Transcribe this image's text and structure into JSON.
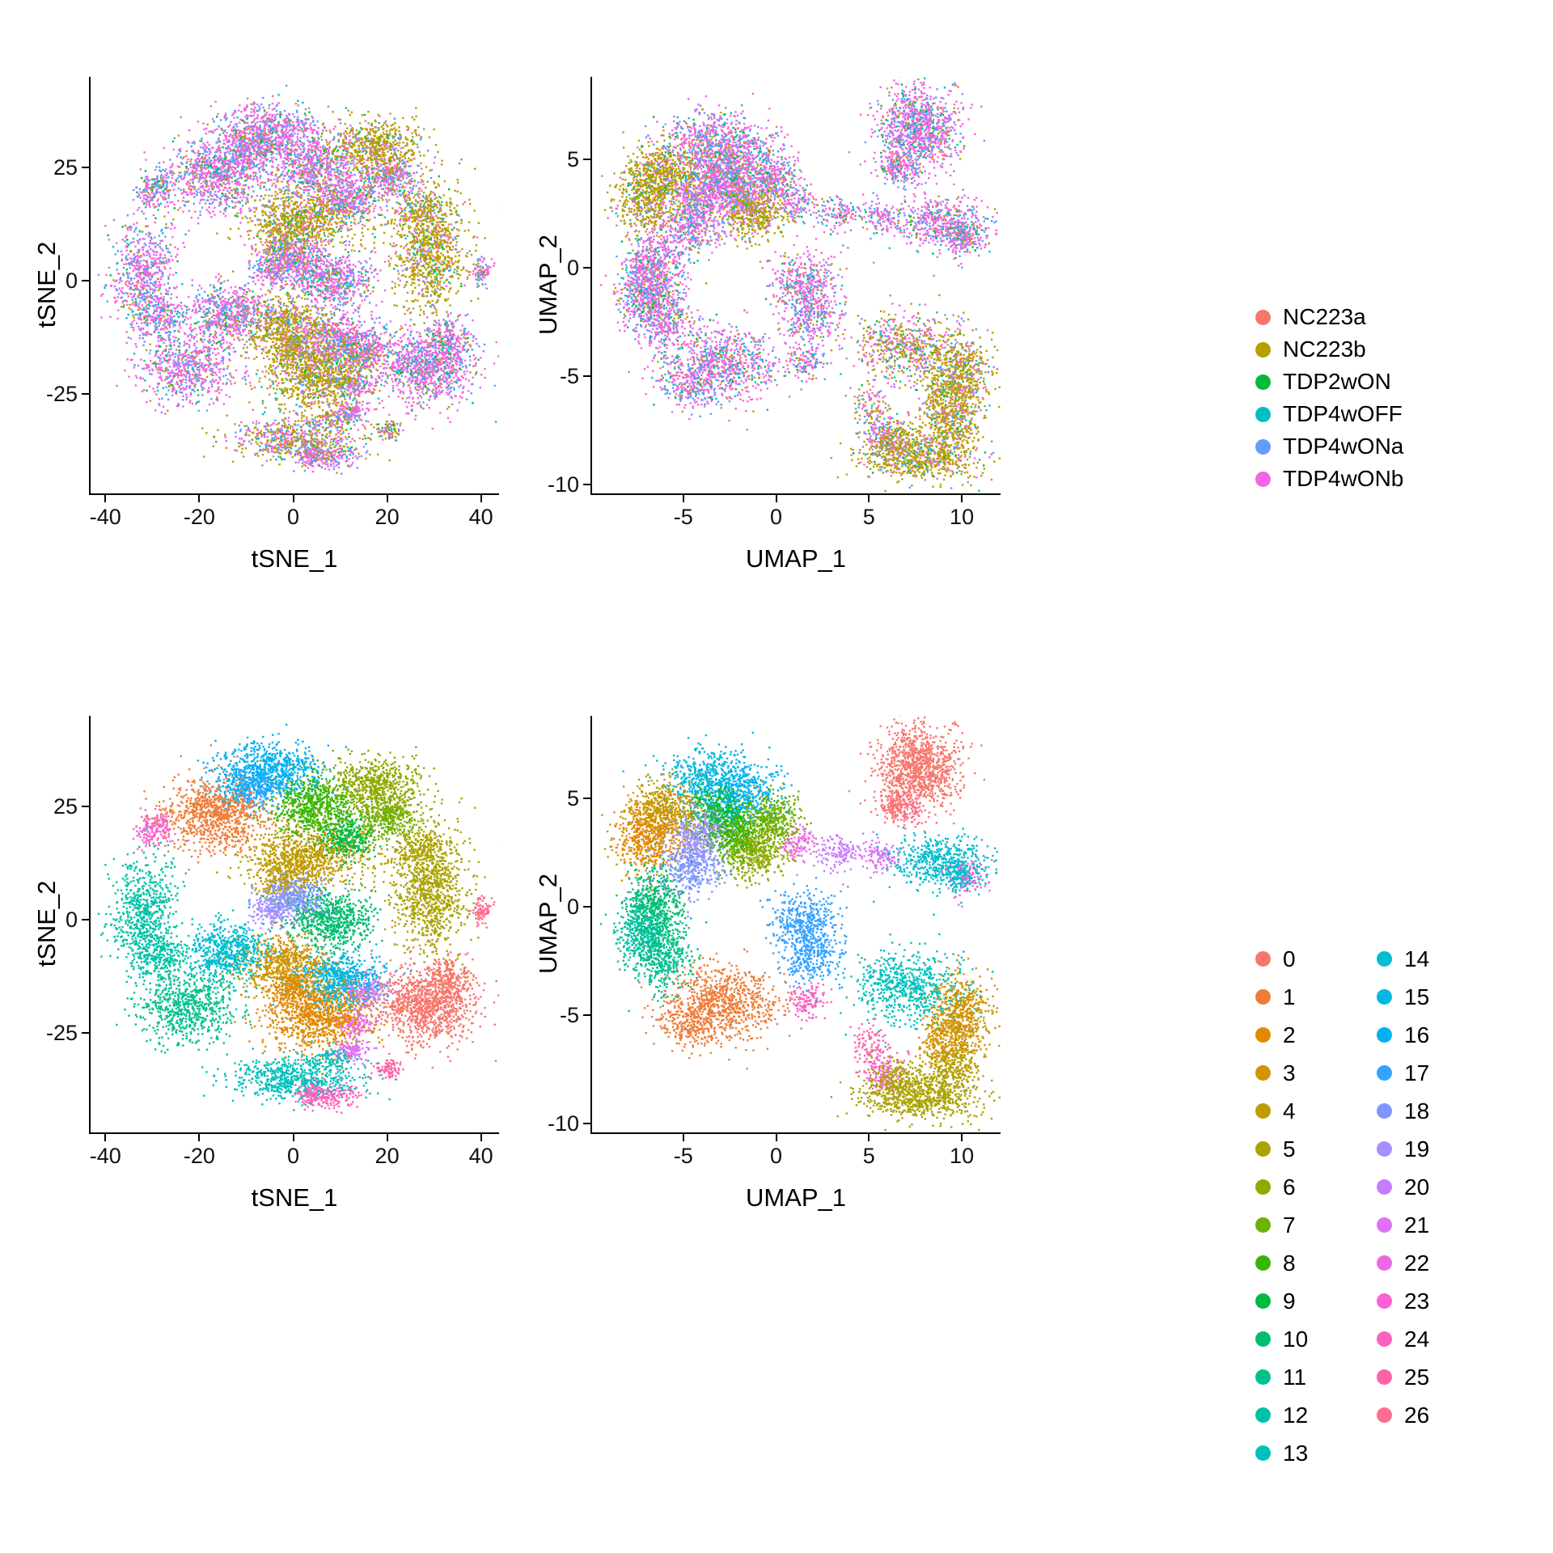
{
  "page": {
    "background": "#ffffff"
  },
  "chart_data": {
    "type": "scatter",
    "figure": "2x2 grid of single-cell embeddings: tSNE (left) and UMAP (right), colored by sample (top row) and by cluster 0-26 (bottom row)",
    "samples": [
      {
        "label": "NC223a",
        "color": "#F8766D"
      },
      {
        "label": "NC223b",
        "color": "#B79F00"
      },
      {
        "label": "TDP2wON",
        "color": "#00BA38"
      },
      {
        "label": "TDP4wOFF",
        "color": "#00BFC4"
      },
      {
        "label": "TDP4wONa",
        "color": "#619CFF"
      },
      {
        "label": "TDP4wONb",
        "color": "#F564E3"
      }
    ],
    "sample_profiles": {
      "mixed": [
        0.03,
        0.07,
        0.05,
        0.09,
        0.2,
        0.56
      ],
      "olive": [
        0.03,
        0.7,
        0.04,
        0.05,
        0.05,
        0.13
      ],
      "semi": [
        0.04,
        0.38,
        0.05,
        0.08,
        0.12,
        0.33
      ]
    },
    "blob_format": [
      "center_x",
      "center_y",
      "sd_x",
      "sd_y",
      "n_points"
    ],
    "panels": [
      {
        "embedding": "tsne",
        "color_by": "sample",
        "xlabel": "tSNE_1",
        "ylabel": "tSNE_2",
        "x_domain": [
          -43.5,
          43.5
        ],
        "y_domain": [
          -47,
          45
        ],
        "x_ticks": [
          -40,
          -20,
          0,
          20,
          40
        ],
        "y_ticks": [
          -25,
          0,
          25
        ]
      },
      {
        "embedding": "umap",
        "color_by": "sample",
        "xlabel": "UMAP_1",
        "ylabel": "UMAP_2",
        "x_domain": [
          -10,
          12
        ],
        "y_domain": [
          -10.4,
          8.8
        ],
        "x_ticks": [
          -5,
          0,
          5,
          10
        ],
        "y_ticks": [
          -10,
          -5,
          0,
          5
        ]
      },
      {
        "embedding": "tsne",
        "color_by": "cluster",
        "xlabel": "tSNE_1",
        "ylabel": "tSNE_2",
        "x_domain": [
          -43.5,
          43.5
        ],
        "y_domain": [
          -47,
          45
        ],
        "x_ticks": [
          -40,
          -20,
          0,
          20,
          40
        ],
        "y_ticks": [
          -25,
          0,
          25
        ]
      },
      {
        "embedding": "umap",
        "color_by": "cluster",
        "xlabel": "UMAP_1",
        "ylabel": "UMAP_2",
        "x_domain": [
          -10,
          12
        ],
        "y_domain": [
          -10.4,
          8.8
        ],
        "x_ticks": [
          -5,
          0,
          5,
          10
        ],
        "y_ticks": [
          -10,
          -5,
          0,
          5
        ]
      }
    ],
    "clusters": [
      {
        "id": 0,
        "color": "#F8766D",
        "profile": "mixed",
        "tsne": [
          [
            28,
            -19,
            5,
            4.2,
            620
          ],
          [
            33,
            -13,
            2.5,
            2.5,
            120
          ]
        ],
        "umap": [
          [
            7.6,
            6.4,
            1.05,
            0.95,
            650
          ],
          [
            6.4,
            4.7,
            0.5,
            0.35,
            70
          ]
        ]
      },
      {
        "id": 1,
        "color": "#EF7D38",
        "profile": "mixed",
        "tsne": [
          [
            -17,
            23,
            5.5,
            3.8,
            560
          ]
        ],
        "umap": [
          [
            -3,
            -4.4,
            1.5,
            0.85,
            520
          ],
          [
            -4.7,
            -5.5,
            0.8,
            0.5,
            120
          ]
        ]
      },
      {
        "id": 2,
        "color": "#E18A00",
        "profile": "olive",
        "tsne": [
          [
            5,
            -21,
            6,
            4,
            620
          ],
          [
            -1,
            -16,
            2.5,
            2,
            120
          ]
        ],
        "umap": [
          [
            -7,
            3.3,
            0.85,
            0.8,
            350
          ]
        ]
      },
      {
        "id": 3,
        "color": "#D29300",
        "profile": "olive",
        "tsne": [
          [
            -2,
            -10,
            4.5,
            3,
            400
          ]
        ],
        "umap": [
          [
            9.8,
            -5,
            0.8,
            0.9,
            380
          ],
          [
            9,
            -6.5,
            0.7,
            0.6,
            150
          ]
        ]
      },
      {
        "id": 4,
        "color": "#C09B00",
        "profile": "olive",
        "tsne": [
          [
            3,
            14,
            6.5,
            3.5,
            520
          ],
          [
            -3,
            10,
            3,
            2.5,
            140
          ]
        ],
        "umap": [
          [
            -6,
            4.5,
            0.9,
            0.7,
            300
          ]
        ]
      },
      {
        "id": 5,
        "color": "#ABA300",
        "profile": "olive",
        "tsne": [
          [
            29,
            7,
            3.8,
            7,
            620
          ],
          [
            27,
            16,
            2.5,
            2,
            100
          ]
        ],
        "umap": [
          [
            7.8,
            -8.7,
            1.6,
            0.55,
            420
          ],
          [
            6.3,
            -8,
            0.8,
            0.5,
            150
          ],
          [
            9.5,
            -7.5,
            0.7,
            0.6,
            150
          ]
        ]
      },
      {
        "id": 6,
        "color": "#91AA00",
        "profile": "olive",
        "tsne": [
          [
            17,
            29,
            5,
            3.3,
            430
          ]
        ],
        "umap": [
          [
            -1.3,
            2.6,
            0.9,
            0.7,
            300
          ]
        ]
      },
      {
        "id": 7,
        "color": "#6FB000",
        "profile": "mixed",
        "tsne": [
          [
            20,
            22,
            3,
            2.5,
            200
          ]
        ],
        "umap": [
          [
            -0.3,
            4.1,
            0.8,
            0.6,
            220
          ]
        ]
      },
      {
        "id": 8,
        "color": "#39B600",
        "profile": "mixed",
        "tsne": [
          [
            4,
            25,
            4.5,
            3.5,
            430
          ]
        ],
        "umap": [
          [
            -2.3,
            3.4,
            0.8,
            0.7,
            260
          ]
        ]
      },
      {
        "id": 9,
        "color": "#00BA42",
        "profile": "mixed",
        "tsne": [
          [
            11,
            18,
            3,
            2.3,
            200
          ]
        ],
        "umap": [
          [
            -3.3,
            4.4,
            0.8,
            0.6,
            220
          ]
        ]
      },
      {
        "id": 10,
        "color": "#00BD6F",
        "profile": "mixed",
        "tsne": [
          [
            8,
            0,
            4.5,
            3.2,
            400
          ]
        ],
        "umap": [
          [
            -6.5,
            0.1,
            0.75,
            0.9,
            300
          ]
        ]
      },
      {
        "id": 11,
        "color": "#00C08E",
        "profile": "mixed",
        "tsne": [
          [
            -23,
            -19,
            5,
            4,
            430
          ]
        ],
        "umap": [
          [
            -6.3,
            -2.3,
            0.8,
            0.8,
            280
          ]
        ]
      },
      {
        "id": 12,
        "color": "#00C1A7",
        "profile": "mixed",
        "tsne": [
          [
            -32,
            1,
            3.2,
            6.5,
            430
          ],
          [
            -28,
            -8,
            2.5,
            2.5,
            110
          ]
        ],
        "umap": [
          [
            -7.4,
            -1.1,
            0.65,
            0.75,
            220
          ]
        ]
      },
      {
        "id": 13,
        "color": "#00C0BC",
        "profile": "semi",
        "tsne": [
          [
            0,
            -35,
            7,
            2.3,
            380
          ],
          [
            8,
            -31,
            2,
            1.5,
            60
          ]
        ],
        "umap": [
          [
            6.9,
            -3.7,
            1.5,
            0.8,
            400
          ]
        ]
      },
      {
        "id": 14,
        "color": "#00BDCF",
        "profile": "mixed",
        "tsne": [
          [
            -14,
            -7,
            4.2,
            3.3,
            380
          ]
        ],
        "umap": [
          [
            8.7,
            2.1,
            1.3,
            0.6,
            300
          ],
          [
            9.9,
            1.4,
            0.6,
            0.4,
            80
          ]
        ]
      },
      {
        "id": 15,
        "color": "#00B8E0",
        "profile": "mixed",
        "tsne": [
          [
            10,
            -13,
            4.5,
            3,
            400
          ]
        ],
        "umap": [
          [
            -3.9,
            6,
            1.1,
            0.6,
            260
          ]
        ]
      },
      {
        "id": 16,
        "color": "#00B0F1",
        "profile": "mixed",
        "tsne": [
          [
            -5,
            33,
            5.5,
            2.8,
            430
          ],
          [
            -12,
            29,
            3,
            2,
            100
          ]
        ],
        "umap": [
          [
            -1.9,
            5.3,
            1,
            0.7,
            260
          ]
        ]
      },
      {
        "id": 17,
        "color": "#35A2FF",
        "profile": "mixed",
        "tsne": [
          [
            -8,
            29,
            2.5,
            2,
            120
          ]
        ],
        "umap": [
          [
            1.5,
            -0.8,
            0.9,
            0.8,
            280
          ],
          [
            1.8,
            -2.4,
            0.7,
            0.6,
            150
          ]
        ]
      },
      {
        "id": 18,
        "color": "#7E96FF",
        "profile": "mixed",
        "tsne": [
          [
            0,
            5,
            3.5,
            2.5,
            260
          ]
        ],
        "umap": [
          [
            -4.6,
            1.9,
            0.8,
            0.8,
            260
          ]
        ]
      },
      {
        "id": 19,
        "color": "#A88FFF",
        "profile": "mixed",
        "tsne": [
          [
            -5,
            2,
            2,
            1.6,
            100
          ]
        ],
        "umap": [
          [
            -4.2,
            3.3,
            0.7,
            0.7,
            200
          ]
        ]
      },
      {
        "id": 20,
        "color": "#C77CFF",
        "profile": "mixed",
        "tsne": [
          [
            15,
            -16,
            2.5,
            2,
            140
          ]
        ],
        "umap": [
          [
            3.3,
            2.5,
            0.6,
            0.4,
            80
          ]
        ]
      },
      {
        "id": 21,
        "color": "#DF70F8",
        "profile": "mixed",
        "tsne": [
          [
            12,
            -29,
            1.8,
            1.5,
            80
          ]
        ],
        "umap": [
          [
            5.6,
            2.4,
            0.5,
            0.4,
            70
          ]
        ]
      },
      {
        "id": 22,
        "color": "#EF67E4",
        "profile": "mixed",
        "tsne": [
          [
            13,
            -23,
            2,
            1.5,
            80
          ]
        ],
        "umap": [
          [
            1.2,
            2.9,
            0.5,
            0.4,
            70
          ]
        ]
      },
      {
        "id": 23,
        "color": "#FA61D2",
        "profile": "mixed",
        "tsne": [
          [
            -30,
            20,
            2.2,
            1.8,
            110
          ]
        ],
        "umap": [
          [
            10.2,
            1.3,
            0.5,
            0.4,
            60
          ],
          [
            5.6,
            -7.6,
            0.6,
            0.5,
            80
          ]
        ]
      },
      {
        "id": 24,
        "color": "#FF61BE",
        "profile": "mixed",
        "tsne": [
          [
            7,
            -39,
            3,
            1.3,
            130
          ],
          [
            3,
            -38,
            1.5,
            1,
            40
          ]
        ],
        "umap": [
          [
            1.6,
            -4.3,
            0.5,
            0.4,
            80
          ]
        ]
      },
      {
        "id": 25,
        "color": "#FF62A8",
        "profile": "semi",
        "tsne": [
          [
            20,
            -33,
            1.5,
            1.2,
            50
          ]
        ],
        "umap": [
          [
            5,
            -6.4,
            0.5,
            0.5,
            60
          ]
        ]
      },
      {
        "id": 26,
        "color": "#FF6C91",
        "profile": "mixed",
        "tsne": [
          [
            40,
            2,
            1,
            1.5,
            50
          ]
        ],
        "umap": [
          [
            7,
            4.5,
            0.5,
            0.4,
            60
          ]
        ]
      }
    ]
  }
}
